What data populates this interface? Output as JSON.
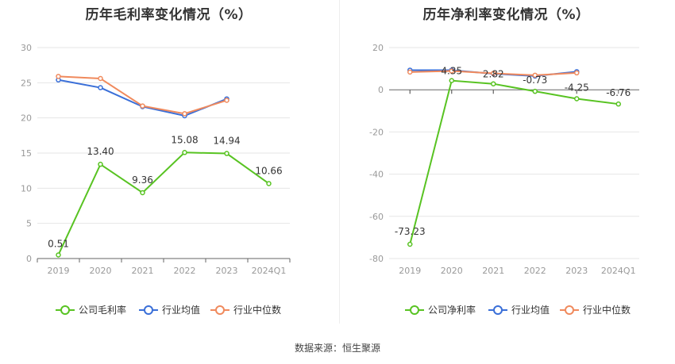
{
  "source": "数据来源：恒生聚源",
  "colors": {
    "company": "#58c322",
    "avg": "#3a6fd8",
    "median": "#f08a5d"
  },
  "chart_data": [
    {
      "id": "gross",
      "type": "line",
      "title": "历年毛利率变化情况（%）",
      "categories": [
        "2019",
        "2020",
        "2021",
        "2022",
        "2023",
        "2024Q1"
      ],
      "ylim": [
        0,
        30
      ],
      "yticks": [
        "0",
        "5",
        "10",
        "15",
        "20",
        "25",
        "30"
      ],
      "grid": true,
      "legend": "bottom",
      "series": [
        {
          "name": "公司毛利率",
          "key": "company",
          "values": [
            0.51,
            13.4,
            9.36,
            15.08,
            14.94,
            10.66
          ],
          "labels": [
            "0.51",
            "13.40",
            "9.36",
            "15.08",
            "14.94",
            "10.66"
          ]
        },
        {
          "name": "行业均值",
          "key": "avg",
          "values": [
            25.4,
            24.3,
            21.6,
            20.3,
            22.7,
            null
          ]
        },
        {
          "name": "行业中位数",
          "key": "median",
          "values": [
            25.9,
            25.6,
            21.7,
            20.6,
            22.5,
            null
          ]
        }
      ]
    },
    {
      "id": "net",
      "type": "line",
      "title": "历年净利率变化情况（%）",
      "categories": [
        "2019",
        "2020",
        "2021",
        "2022",
        "2023",
        "2024Q1"
      ],
      "ylim": [
        -80,
        20
      ],
      "yticks": [
        "-80",
        "-60",
        "-40",
        "-20",
        "0",
        "20"
      ],
      "grid": true,
      "legend": "bottom",
      "series": [
        {
          "name": "公司净利率",
          "key": "company",
          "values": [
            -73.23,
            4.35,
            2.82,
            -0.73,
            -4.25,
            -6.76
          ],
          "labels": [
            "-73.23",
            "4.35",
            "2.82",
            "-0.73",
            "-4.25",
            "-6.76"
          ]
        },
        {
          "name": "行业均值",
          "key": "avg",
          "values": [
            9.3,
            9.3,
            7.6,
            6.5,
            8.6,
            null
          ]
        },
        {
          "name": "行业中位数",
          "key": "median",
          "values": [
            8.4,
            8.9,
            7.8,
            6.9,
            8.0,
            null
          ]
        }
      ]
    }
  ]
}
